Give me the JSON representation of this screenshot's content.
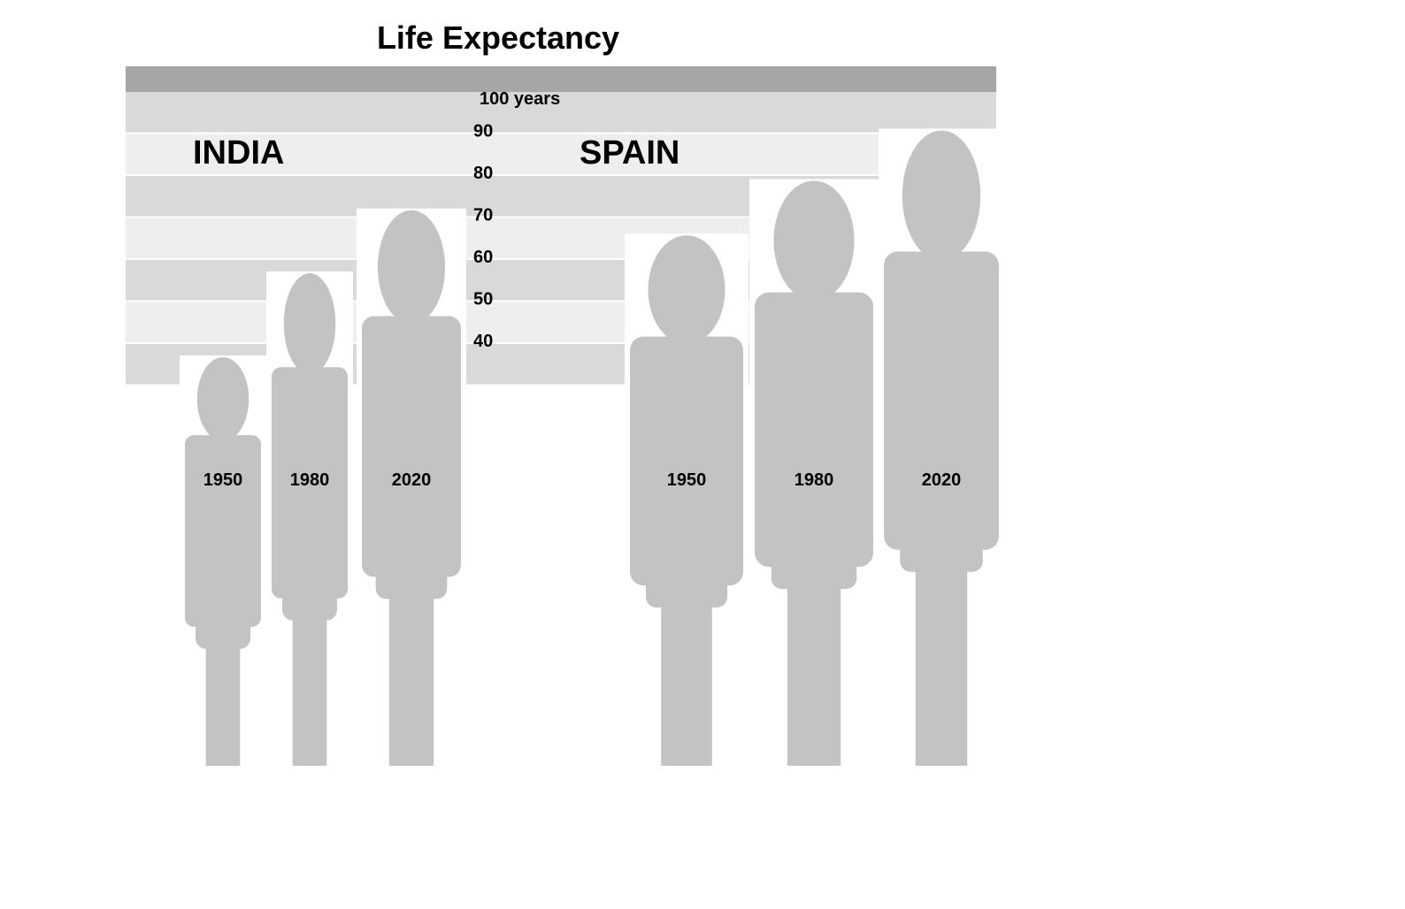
{
  "chart_data": {
    "type": "bar",
    "title": "Life Expectancy",
    "y_unit_label": "100 years",
    "y_ticks": [
      90,
      80,
      70,
      60,
      50,
      40
    ],
    "ylim": [
      30,
      100
    ],
    "grid": true,
    "colors": {
      "band_dark": "#d9d9d9",
      "band_light": "#eeeeee",
      "header_band": "#a6a6a6",
      "figure": "#c3c3c3"
    },
    "groups": [
      {
        "label": "INDIA",
        "categories": [
          "1950",
          "1980",
          "2020"
        ],
        "values": [
          36,
          56,
          71
        ]
      },
      {
        "label": "SPAIN",
        "categories": [
          "1950",
          "1980",
          "2020"
        ],
        "values": [
          65,
          78,
          90
        ]
      }
    ]
  }
}
